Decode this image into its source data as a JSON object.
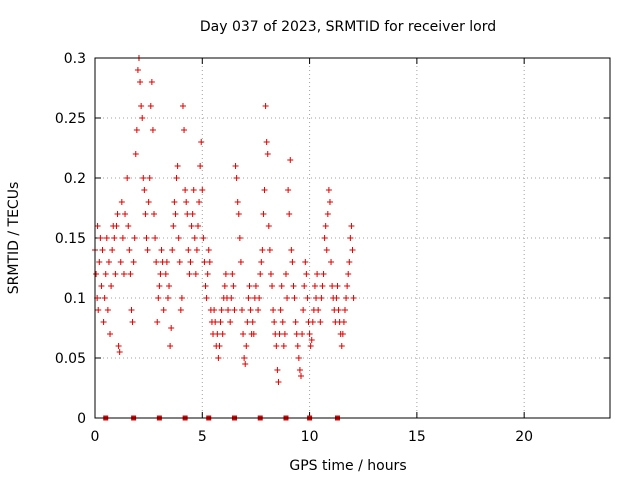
{
  "chart_data": {
    "type": "scatter",
    "title": "Day 037 of 2023, SRMTID for receiver lord",
    "xlabel": "GPS time / hours",
    "ylabel": "SRMTID / TECUs",
    "xlim": [
      0,
      24
    ],
    "ylim": [
      0,
      0.3
    ],
    "x_ticks": [
      "0",
      "5",
      "10",
      "15",
      "20"
    ],
    "y_ticks": [
      "0",
      "0.05",
      "0.1",
      "0.15",
      "0.2",
      "0.25",
      "0.3"
    ],
    "grid": true,
    "marker": "plus",
    "color": "#e00000",
    "series": [
      {
        "points": [
          [
            0.0,
            0.14
          ],
          [
            0.05,
            0.12
          ],
          [
            0.1,
            0.1
          ],
          [
            0.12,
            0.16
          ],
          [
            0.15,
            0.09
          ],
          [
            0.2,
            0.13
          ],
          [
            0.25,
            0.15
          ],
          [
            0.3,
            0.11
          ],
          [
            0.35,
            0.14
          ],
          [
            0.4,
            0.08
          ],
          [
            0.45,
            0.1
          ],
          [
            0.5,
            0.12
          ],
          [
            0.55,
            0.15
          ],
          [
            0.6,
            0.09
          ],
          [
            0.65,
            0.13
          ],
          [
            0.7,
            0.07
          ],
          [
            0.75,
            0.11
          ],
          [
            0.8,
            0.14
          ],
          [
            0.85,
            0.16
          ],
          [
            0.9,
            0.15
          ],
          [
            0.95,
            0.12
          ],
          [
            1.0,
            0.16
          ],
          [
            1.05,
            0.17
          ],
          [
            1.1,
            0.06
          ],
          [
            1.15,
            0.055
          ],
          [
            1.2,
            0.13
          ],
          [
            1.25,
            0.18
          ],
          [
            1.3,
            0.15
          ],
          [
            1.35,
            0.12
          ],
          [
            1.4,
            0.17
          ],
          [
            1.5,
            0.2
          ],
          [
            1.55,
            0.16
          ],
          [
            1.6,
            0.14
          ],
          [
            1.65,
            0.12
          ],
          [
            1.7,
            0.09
          ],
          [
            1.75,
            0.08
          ],
          [
            1.8,
            0.13
          ],
          [
            1.85,
            0.15
          ],
          [
            1.9,
            0.22
          ],
          [
            1.95,
            0.24
          ],
          [
            2.0,
            0.29
          ],
          [
            2.05,
            0.3
          ],
          [
            2.1,
            0.28
          ],
          [
            2.15,
            0.26
          ],
          [
            2.2,
            0.25
          ],
          [
            2.25,
            0.2
          ],
          [
            2.3,
            0.19
          ],
          [
            2.35,
            0.17
          ],
          [
            2.4,
            0.15
          ],
          [
            2.45,
            0.14
          ],
          [
            2.5,
            0.18
          ],
          [
            2.55,
            0.2
          ],
          [
            2.6,
            0.26
          ],
          [
            2.65,
            0.28
          ],
          [
            2.7,
            0.24
          ],
          [
            2.75,
            0.17
          ],
          [
            2.8,
            0.15
          ],
          [
            2.85,
            0.13
          ],
          [
            2.9,
            0.08
          ],
          [
            2.95,
            0.1
          ],
          [
            3.0,
            0.11
          ],
          [
            3.05,
            0.12
          ],
          [
            3.1,
            0.14
          ],
          [
            3.15,
            0.13
          ],
          [
            3.2,
            0.09
          ],
          [
            3.3,
            0.12
          ],
          [
            3.35,
            0.13
          ],
          [
            3.4,
            0.1
          ],
          [
            3.45,
            0.11
          ],
          [
            3.5,
            0.06
          ],
          [
            3.55,
            0.075
          ],
          [
            3.6,
            0.14
          ],
          [
            3.65,
            0.16
          ],
          [
            3.7,
            0.18
          ],
          [
            3.75,
            0.17
          ],
          [
            3.8,
            0.2
          ],
          [
            3.85,
            0.21
          ],
          [
            3.9,
            0.15
          ],
          [
            3.95,
            0.13
          ],
          [
            4.0,
            0.09
          ],
          [
            4.05,
            0.1
          ],
          [
            4.1,
            0.26
          ],
          [
            4.15,
            0.24
          ],
          [
            4.2,
            0.19
          ],
          [
            4.25,
            0.18
          ],
          [
            4.3,
            0.17
          ],
          [
            4.35,
            0.14
          ],
          [
            4.4,
            0.12
          ],
          [
            4.45,
            0.13
          ],
          [
            4.5,
            0.16
          ],
          [
            4.55,
            0.17
          ],
          [
            4.6,
            0.19
          ],
          [
            4.65,
            0.15
          ],
          [
            4.7,
            0.12
          ],
          [
            4.75,
            0.14
          ],
          [
            4.8,
            0.16
          ],
          [
            4.85,
            0.18
          ],
          [
            4.9,
            0.21
          ],
          [
            4.95,
            0.23
          ],
          [
            5.0,
            0.19
          ],
          [
            5.05,
            0.15
          ],
          [
            5.1,
            0.13
          ],
          [
            5.15,
            0.11
          ],
          [
            5.2,
            0.1
          ],
          [
            5.25,
            0.12
          ],
          [
            5.3,
            0.14
          ],
          [
            5.35,
            0.13
          ],
          [
            5.4,
            0.09
          ],
          [
            5.45,
            0.08
          ],
          [
            5.5,
            0.07
          ],
          [
            5.55,
            0.09
          ],
          [
            5.6,
            0.08
          ],
          [
            5.65,
            0.06
          ],
          [
            5.7,
            0.07
          ],
          [
            5.75,
            0.05
          ],
          [
            5.8,
            0.06
          ],
          [
            5.85,
            0.08
          ],
          [
            5.9,
            0.09
          ],
          [
            5.95,
            0.07
          ],
          [
            6.0,
            0.1
          ],
          [
            6.05,
            0.11
          ],
          [
            6.1,
            0.12
          ],
          [
            6.15,
            0.1
          ],
          [
            6.2,
            0.09
          ],
          [
            6.3,
            0.08
          ],
          [
            6.35,
            0.1
          ],
          [
            6.4,
            0.12
          ],
          [
            6.45,
            0.11
          ],
          [
            6.5,
            0.09
          ],
          [
            6.55,
            0.21
          ],
          [
            6.6,
            0.2
          ],
          [
            6.65,
            0.18
          ],
          [
            6.7,
            0.17
          ],
          [
            6.75,
            0.15
          ],
          [
            6.8,
            0.13
          ],
          [
            6.85,
            0.09
          ],
          [
            6.9,
            0.07
          ],
          [
            6.95,
            0.05
          ],
          [
            7.0,
            0.045
          ],
          [
            7.05,
            0.06
          ],
          [
            7.1,
            0.08
          ],
          [
            7.15,
            0.1
          ],
          [
            7.2,
            0.11
          ],
          [
            7.25,
            0.09
          ],
          [
            7.3,
            0.07
          ],
          [
            7.35,
            0.08
          ],
          [
            7.4,
            0.07
          ],
          [
            7.45,
            0.1
          ],
          [
            7.5,
            0.11
          ],
          [
            7.6,
            0.09
          ],
          [
            7.65,
            0.1
          ],
          [
            7.7,
            0.12
          ],
          [
            7.75,
            0.13
          ],
          [
            7.8,
            0.14
          ],
          [
            7.85,
            0.17
          ],
          [
            7.9,
            0.19
          ],
          [
            7.95,
            0.26
          ],
          [
            8.0,
            0.23
          ],
          [
            8.05,
            0.22
          ],
          [
            8.1,
            0.16
          ],
          [
            8.15,
            0.14
          ],
          [
            8.2,
            0.12
          ],
          [
            8.25,
            0.11
          ],
          [
            8.3,
            0.09
          ],
          [
            8.35,
            0.08
          ],
          [
            8.4,
            0.07
          ],
          [
            8.45,
            0.06
          ],
          [
            8.5,
            0.04
          ],
          [
            8.55,
            0.03
          ],
          [
            8.6,
            0.07
          ],
          [
            8.65,
            0.09
          ],
          [
            8.7,
            0.11
          ],
          [
            8.75,
            0.08
          ],
          [
            8.8,
            0.06
          ],
          [
            8.85,
            0.07
          ],
          [
            8.9,
            0.12
          ],
          [
            8.95,
            0.1
          ],
          [
            9.0,
            0.19
          ],
          [
            9.05,
            0.17
          ],
          [
            9.1,
            0.215
          ],
          [
            9.15,
            0.14
          ],
          [
            9.2,
            0.13
          ],
          [
            9.25,
            0.11
          ],
          [
            9.3,
            0.1
          ],
          [
            9.35,
            0.08
          ],
          [
            9.4,
            0.07
          ],
          [
            9.45,
            0.06
          ],
          [
            9.5,
            0.05
          ],
          [
            9.55,
            0.04
          ],
          [
            9.6,
            0.035
          ],
          [
            9.65,
            0.07
          ],
          [
            9.7,
            0.09
          ],
          [
            9.75,
            0.11
          ],
          [
            9.8,
            0.13
          ],
          [
            9.85,
            0.12
          ],
          [
            9.9,
            0.1
          ],
          [
            9.95,
            0.08
          ],
          [
            10.0,
            0.07
          ],
          [
            10.05,
            0.06
          ],
          [
            10.1,
            0.065
          ],
          [
            10.15,
            0.08
          ],
          [
            10.2,
            0.09
          ],
          [
            10.25,
            0.11
          ],
          [
            10.3,
            0.1
          ],
          [
            10.35,
            0.12
          ],
          [
            10.4,
            0.09
          ],
          [
            10.5,
            0.08
          ],
          [
            10.55,
            0.1
          ],
          [
            10.6,
            0.11
          ],
          [
            10.65,
            0.12
          ],
          [
            10.7,
            0.15
          ],
          [
            10.75,
            0.16
          ],
          [
            10.8,
            0.14
          ],
          [
            10.85,
            0.17
          ],
          [
            10.9,
            0.19
          ],
          [
            10.95,
            0.18
          ],
          [
            11.0,
            0.13
          ],
          [
            11.05,
            0.11
          ],
          [
            11.1,
            0.1
          ],
          [
            11.15,
            0.09
          ],
          [
            11.2,
            0.08
          ],
          [
            11.25,
            0.1
          ],
          [
            11.3,
            0.11
          ],
          [
            11.35,
            0.09
          ],
          [
            11.4,
            0.08
          ],
          [
            11.45,
            0.07
          ],
          [
            11.5,
            0.06
          ],
          [
            11.55,
            0.07
          ],
          [
            11.6,
            0.08
          ],
          [
            11.65,
            0.09
          ],
          [
            11.7,
            0.1
          ],
          [
            11.75,
            0.11
          ],
          [
            11.8,
            0.12
          ],
          [
            11.85,
            0.13
          ],
          [
            11.9,
            0.15
          ],
          [
            11.95,
            0.16
          ],
          [
            12.0,
            0.14
          ],
          [
            12.05,
            0.1
          ]
        ],
        "zero_points": [
          0.5,
          1.8,
          3.0,
          4.2,
          5.3,
          6.5,
          7.7,
          8.9,
          10.0,
          11.3
        ]
      }
    ]
  }
}
